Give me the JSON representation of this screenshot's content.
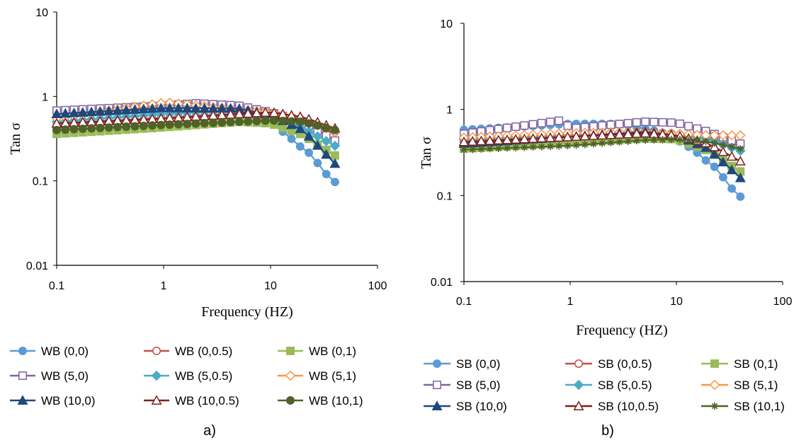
{
  "chart_data": [
    {
      "type": "line",
      "xscale": "log",
      "yscale": "log",
      "xlim": [
        0.1,
        100
      ],
      "ylim": [
        0.01,
        10
      ],
      "xlabel": "Frequency (HZ)",
      "ylabel": "Tan σ",
      "caption": "a)",
      "x_ticks": [
        "0.1",
        "1",
        "10",
        "100"
      ],
      "y_ticks": [
        "0.01",
        "0.1",
        "1",
        "10"
      ],
      "legend_position": "bottom",
      "grid": false,
      "series": [
        {
          "name": "WB (0,0)",
          "color": "#5b9bd5",
          "marker": "circle-filled",
          "points": [
            [
              0.1,
              0.42
            ],
            [
              1,
              0.55
            ],
            [
              5,
              0.6
            ],
            [
              10,
              0.5
            ],
            [
              15,
              0.33
            ],
            [
              20,
              0.24
            ],
            [
              25,
              0.2
            ],
            [
              30,
              0.135
            ],
            [
              40,
              0.097
            ]
          ]
        },
        {
          "name": "WB (0,0.5)",
          "color": "#c0504d",
          "marker": "circle-open",
          "points": [
            [
              0.1,
              0.45
            ],
            [
              1,
              0.55
            ],
            [
              5,
              0.62
            ],
            [
              10,
              0.6
            ],
            [
              20,
              0.5
            ],
            [
              40,
              0.38
            ]
          ]
        },
        {
          "name": "WB (0,1)",
          "color": "#9bbb59",
          "marker": "square-filled",
          "points": [
            [
              0.1,
              0.36
            ],
            [
              1,
              0.43
            ],
            [
              5,
              0.5
            ],
            [
              10,
              0.48
            ],
            [
              20,
              0.35
            ],
            [
              40,
              0.2
            ]
          ]
        },
        {
          "name": "WB (5,0)",
          "color": "#8064a2",
          "marker": "square-open",
          "points": [
            [
              0.1,
              0.68
            ],
            [
              1,
              0.78
            ],
            [
              2,
              0.83
            ],
            [
              5,
              0.78
            ],
            [
              10,
              0.65
            ],
            [
              20,
              0.5
            ],
            [
              40,
              0.3
            ]
          ]
        },
        {
          "name": "WB (5,0.5)",
          "color": "#4bacc6",
          "marker": "diamond-filled",
          "points": [
            [
              0.1,
              0.5
            ],
            [
              1,
              0.62
            ],
            [
              5,
              0.68
            ],
            [
              10,
              0.6
            ],
            [
              20,
              0.42
            ],
            [
              40,
              0.26
            ]
          ]
        },
        {
          "name": "WB (5,1)",
          "color": "#f79646",
          "marker": "diamond-open",
          "points": [
            [
              0.1,
              0.55
            ],
            [
              1.05,
              0.85
            ],
            [
              5,
              0.7
            ],
            [
              10,
              0.65
            ],
            [
              20,
              0.55
            ],
            [
              40,
              0.38
            ]
          ]
        },
        {
          "name": "WB (10,0)",
          "color": "#1f497d",
          "marker": "triangle-filled",
          "points": [
            [
              0.1,
              0.62
            ],
            [
              1,
              0.73
            ],
            [
              5,
              0.72
            ],
            [
              10,
              0.6
            ],
            [
              20,
              0.4
            ],
            [
              40,
              0.16
            ]
          ]
        },
        {
          "name": "WB (10,0.5)",
          "color": "#7f1f1f",
          "marker": "triangle-open",
          "points": [
            [
              0.1,
              0.48
            ],
            [
              1,
              0.55
            ],
            [
              5,
              0.62
            ],
            [
              10,
              0.65
            ],
            [
              20,
              0.57
            ],
            [
              40,
              0.42
            ]
          ]
        },
        {
          "name": "WB (10,1)",
          "color": "#4f6228",
          "marker": "circle-filled",
          "points": [
            [
              0.1,
              0.4
            ],
            [
              1,
              0.46
            ],
            [
              5,
              0.5
            ],
            [
              10,
              0.52
            ],
            [
              20,
              0.5
            ],
            [
              40,
              0.4
            ]
          ]
        }
      ]
    },
    {
      "type": "line",
      "xscale": "log",
      "yscale": "log",
      "xlim": [
        0.1,
        100
      ],
      "ylim": [
        0.01,
        10
      ],
      "xlabel": "Frequency (HZ)",
      "ylabel": "Tan σ",
      "caption": "b)",
      "x_ticks": [
        "0.1",
        "1",
        "10",
        "100"
      ],
      "y_ticks": [
        "0.01",
        "0.1",
        "1",
        "10"
      ],
      "legend_position": "bottom",
      "grid": false,
      "series": [
        {
          "name": "SB (0,0)",
          "color": "#5b9bd5",
          "marker": "circle-filled",
          "points": [
            [
              0.1,
              0.58
            ],
            [
              1,
              0.68
            ],
            [
              3,
              0.68
            ],
            [
              7,
              0.55
            ],
            [
              10,
              0.45
            ],
            [
              15,
              0.33
            ],
            [
              20,
              0.24
            ],
            [
              25,
              0.2
            ],
            [
              30,
              0.135
            ],
            [
              40,
              0.097
            ]
          ]
        },
        {
          "name": "SB (0,0.5)",
          "color": "#c0504d",
          "marker": "circle-open",
          "points": [
            [
              0.1,
              0.42
            ],
            [
              1,
              0.5
            ],
            [
              5,
              0.55
            ],
            [
              10,
              0.52
            ],
            [
              20,
              0.45
            ],
            [
              40,
              0.38
            ]
          ]
        },
        {
          "name": "SB (0,1)",
          "color": "#9bbb59",
          "marker": "square-filled",
          "points": [
            [
              0.1,
              0.35
            ],
            [
              1,
              0.41
            ],
            [
              5,
              0.46
            ],
            [
              10,
              0.45
            ],
            [
              20,
              0.33
            ],
            [
              40,
              0.19
            ]
          ]
        },
        {
          "name": "SB (5,0)",
          "color": "#8064a2",
          "marker": "square-open",
          "points": [
            [
              0.1,
              0.52
            ],
            [
              0.85,
              0.75
            ],
            [
              1,
              0.6
            ],
            [
              5,
              0.72
            ],
            [
              10,
              0.7
            ],
            [
              20,
              0.55
            ],
            [
              40,
              0.4
            ]
          ]
        },
        {
          "name": "SB (5,0.5)",
          "color": "#4bacc6",
          "marker": "diamond-filled",
          "points": [
            [
              0.1,
              0.45
            ],
            [
              1,
              0.52
            ],
            [
              5,
              0.55
            ],
            [
              10,
              0.52
            ],
            [
              20,
              0.45
            ],
            [
              40,
              0.33
            ]
          ]
        },
        {
          "name": "SB (5,1)",
          "color": "#f79646",
          "marker": "diamond-open",
          "points": [
            [
              0.1,
              0.47
            ],
            [
              1,
              0.53
            ],
            [
              5,
              0.55
            ],
            [
              10,
              0.52
            ],
            [
              20,
              0.5
            ],
            [
              40,
              0.5
            ]
          ]
        },
        {
          "name": "SB (10,0)",
          "color": "#1f497d",
          "marker": "triangle-filled",
          "points": [
            [
              0.1,
              0.4
            ],
            [
              1,
              0.48
            ],
            [
              5,
              0.55
            ],
            [
              10,
              0.5
            ],
            [
              20,
              0.35
            ],
            [
              40,
              0.16
            ]
          ]
        },
        {
          "name": "SB (10,0.5)",
          "color": "#7f1f1f",
          "marker": "triangle-open",
          "points": [
            [
              0.1,
              0.42
            ],
            [
              1,
              0.48
            ],
            [
              5,
              0.53
            ],
            [
              10,
              0.5
            ],
            [
              20,
              0.4
            ],
            [
              40,
              0.25
            ]
          ]
        },
        {
          "name": "SB (10,1)",
          "color": "#4f6228",
          "marker": "star",
          "points": [
            [
              0.1,
              0.34
            ],
            [
              1,
              0.38
            ],
            [
              5,
              0.44
            ],
            [
              10,
              0.45
            ],
            [
              20,
              0.42
            ],
            [
              40,
              0.35
            ]
          ]
        }
      ]
    }
  ]
}
